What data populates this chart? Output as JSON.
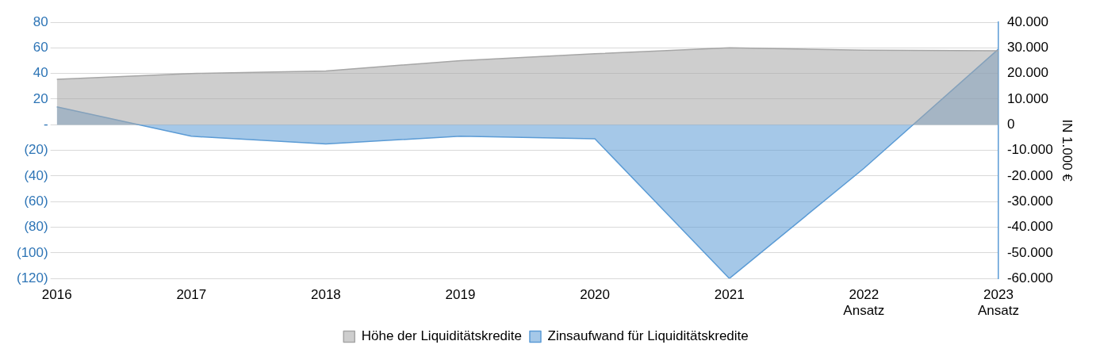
{
  "chart_data": {
    "type": "area",
    "categories": [
      "2016",
      "2017",
      "2018",
      "2019",
      "2020",
      "2021",
      "2022\nAnsatz",
      "2023\nAnsatz"
    ],
    "series": [
      {
        "name": "Höhe der Liquiditätskredite",
        "color": "#a6a6a6",
        "axis": "y2",
        "values": [
          17700,
          20000,
          21000,
          25000,
          27700,
          30000,
          29100,
          28900
        ]
      },
      {
        "name": "Zinsaufwand für Liquiditätskredite",
        "color": "#5b9bd5",
        "values": [
          14,
          -9,
          -15,
          -9,
          -11,
          -120,
          -34,
          59
        ]
      }
    ],
    "ylim": [
      -120,
      80
    ],
    "yticks": [
      80,
      60,
      40,
      20,
      {
        "value": 0,
        "label": "-"
      },
      {
        "value": -20,
        "label": "(20)"
      },
      {
        "value": -40,
        "label": "(40)"
      },
      {
        "value": -60,
        "label": "(60)"
      },
      {
        "value": -80,
        "label": "(80)"
      },
      {
        "value": -100,
        "label": "(100)"
      },
      {
        "value": -120,
        "label": "(120)"
      }
    ],
    "y2lim": [
      -60000,
      40000
    ],
    "y2ticks": [
      {
        "value": 40000,
        "label": "40.000"
      },
      {
        "value": 30000,
        "label": "30.000"
      },
      {
        "value": 20000,
        "label": "20.000"
      },
      {
        "value": 10000,
        "label": "10.000"
      },
      0,
      {
        "value": -10000,
        "label": "-10.000"
      },
      {
        "value": -20000,
        "label": "-20.000"
      },
      {
        "value": -30000,
        "label": "-30.000"
      },
      {
        "value": -40000,
        "label": "-40.000"
      },
      {
        "value": -50000,
        "label": "-50.000"
      },
      {
        "value": -60000,
        "label": "-60.000"
      }
    ],
    "y2label": "IN 1.000 €",
    "grid": "y",
    "legend": "bottom"
  }
}
